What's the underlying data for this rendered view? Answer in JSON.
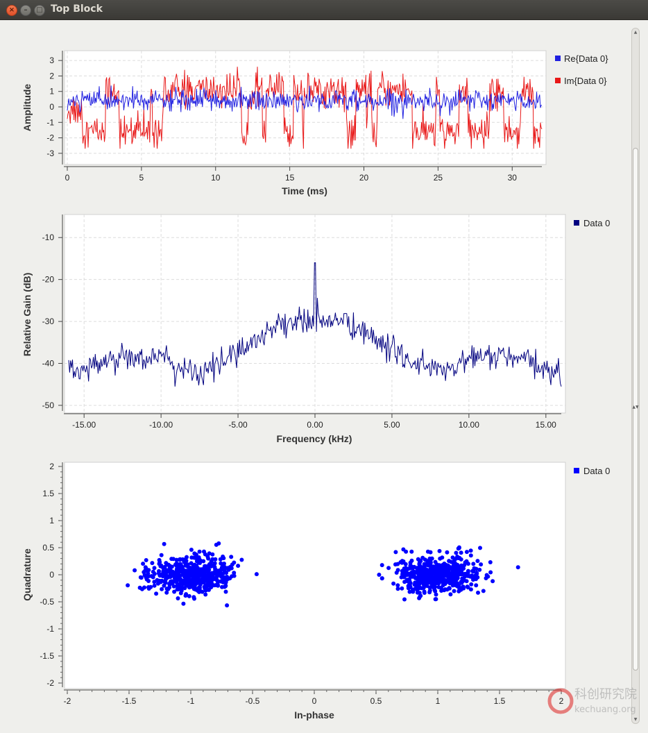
{
  "window": {
    "title": "Top Block",
    "close_glyph": "×",
    "min_glyph": "–",
    "max_glyph": "□"
  },
  "colors": {
    "re_series": "#2020e0",
    "im_series": "#e81818",
    "freq_series": "#00007f",
    "const_series": "#0000ff"
  },
  "watermark": {
    "text_cn": "科创研究院",
    "text_en": "kechuang.org"
  },
  "chart_data": [
    {
      "type": "line",
      "name": "time-sink",
      "xlabel": "Time (ms)",
      "ylabel": "Amplitude",
      "xlim": [
        0,
        32
      ],
      "ylim": [
        -3.5,
        3.5
      ],
      "x_ticks": [
        "0",
        "5",
        "10",
        "15",
        "20",
        "25",
        "30"
      ],
      "y_ticks": [
        "3",
        "2",
        "1",
        "0",
        "-1",
        "-2",
        "-3"
      ],
      "grid": true,
      "legend_position": "right",
      "series": [
        {
          "name": "Re{Data 0}",
          "color": "#2020e0",
          "pattern": "noise",
          "center": 0.4,
          "spread": 0.6
        },
        {
          "name": "Im{Data 0}",
          "color": "#e81818",
          "pattern": "noise",
          "center": -0.2,
          "spread": 2.2
        }
      ]
    },
    {
      "type": "line",
      "name": "freq-sink",
      "xlabel": "Frequency (kHz)",
      "ylabel": "Relative Gain (dB)",
      "xlim": [
        -16,
        16
      ],
      "ylim": [
        -51,
        -5
      ],
      "x_ticks": [
        "-15.00",
        "-10.00",
        "-5.00",
        "0.00",
        "5.00",
        "10.00",
        "15.00"
      ],
      "y_ticks": [
        "-10",
        "-20",
        "-30",
        "-40",
        "-50"
      ],
      "grid": true,
      "legend_position": "right",
      "series": [
        {
          "name": "Data 0",
          "color": "#00007f",
          "envelope_x": [
            -16,
            -12,
            -10,
            -8,
            -7.5,
            -5,
            -2,
            0,
            2,
            5,
            8,
            9,
            10,
            12,
            14,
            16
          ],
          "envelope_y": [
            -42,
            -38,
            -39,
            -42,
            -43,
            -37,
            -30,
            -30,
            -30,
            -37,
            -42,
            -41,
            -39,
            -38,
            -40,
            -43
          ],
          "peak": {
            "x": 0,
            "y": -16
          }
        }
      ]
    },
    {
      "type": "scatter",
      "name": "constellation-sink",
      "xlabel": "In-phase",
      "ylabel": "Quadrature",
      "xlim": [
        -2,
        2
      ],
      "ylim": [
        -2,
        2
      ],
      "x_ticks": [
        "-2",
        "-1.5",
        "-1",
        "-0.5",
        "0",
        "0.5",
        "1",
        "1.5",
        "2"
      ],
      "y_ticks": [
        "2",
        "1.5",
        "1",
        "0.5",
        "0",
        "-0.5",
        "-1",
        "-1.5",
        "-2"
      ],
      "grid": false,
      "legend_position": "top-right",
      "series": [
        {
          "name": "Data 0",
          "color": "#0000ff",
          "clusters": [
            {
              "cx": -1,
              "cy": 0,
              "sx": 0.17,
              "sy": 0.17
            },
            {
              "cx": 1,
              "cy": 0,
              "sx": 0.17,
              "sy": 0.17
            }
          ]
        }
      ]
    }
  ]
}
